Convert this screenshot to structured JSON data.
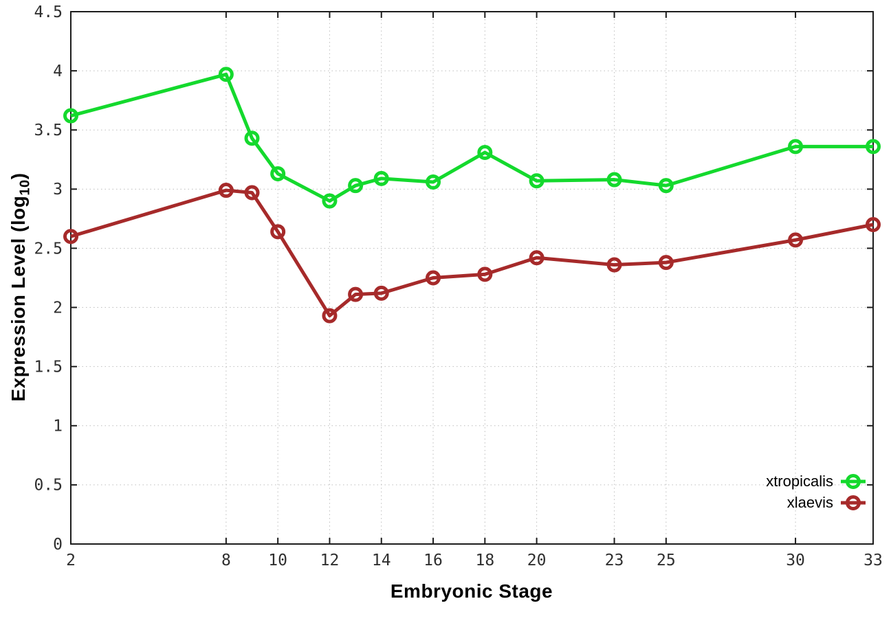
{
  "chart_data": {
    "type": "line",
    "title": "",
    "xlabel": "Embryonic Stage",
    "ylabel": "Expression Level (log10)",
    "ylabel_parts": {
      "prefix": "Expression Level (log",
      "sub": "10",
      "suffix": ")"
    },
    "xlim": [
      2,
      33
    ],
    "ylim": [
      0,
      4.5
    ],
    "xticks": [
      2,
      8,
      10,
      12,
      14,
      16,
      18,
      20,
      23,
      25,
      30,
      33
    ],
    "yticks": [
      "0",
      "0.5",
      "1",
      "1.5",
      "2",
      "2.5",
      "3",
      "3.5",
      "4",
      "4.5"
    ],
    "grid": true,
    "grid_style": "dotted",
    "legend_position": "inside-bottom-right",
    "x": [
      2,
      8,
      9,
      10,
      12,
      13,
      14,
      16,
      18,
      20,
      23,
      25,
      30,
      33
    ],
    "series": [
      {
        "name": "xtropicalis",
        "color": "#14d92d",
        "marker": "open-circle",
        "values": [
          3.62,
          3.97,
          3.43,
          3.13,
          2.9,
          3.03,
          3.09,
          3.06,
          3.31,
          3.07,
          3.08,
          3.03,
          3.36,
          3.36
        ]
      },
      {
        "name": "xlaevis",
        "color": "#a62a2a",
        "marker": "open-circle",
        "values": [
          2.6,
          2.99,
          2.97,
          2.64,
          1.93,
          2.11,
          2.12,
          2.25,
          2.28,
          2.42,
          2.36,
          2.38,
          2.57,
          2.7
        ]
      }
    ],
    "colors": {
      "background": "#ffffff",
      "border": "#1c1c1c",
      "grid": "#bdbdbd",
      "tick_label": "#2f2f2f"
    }
  }
}
